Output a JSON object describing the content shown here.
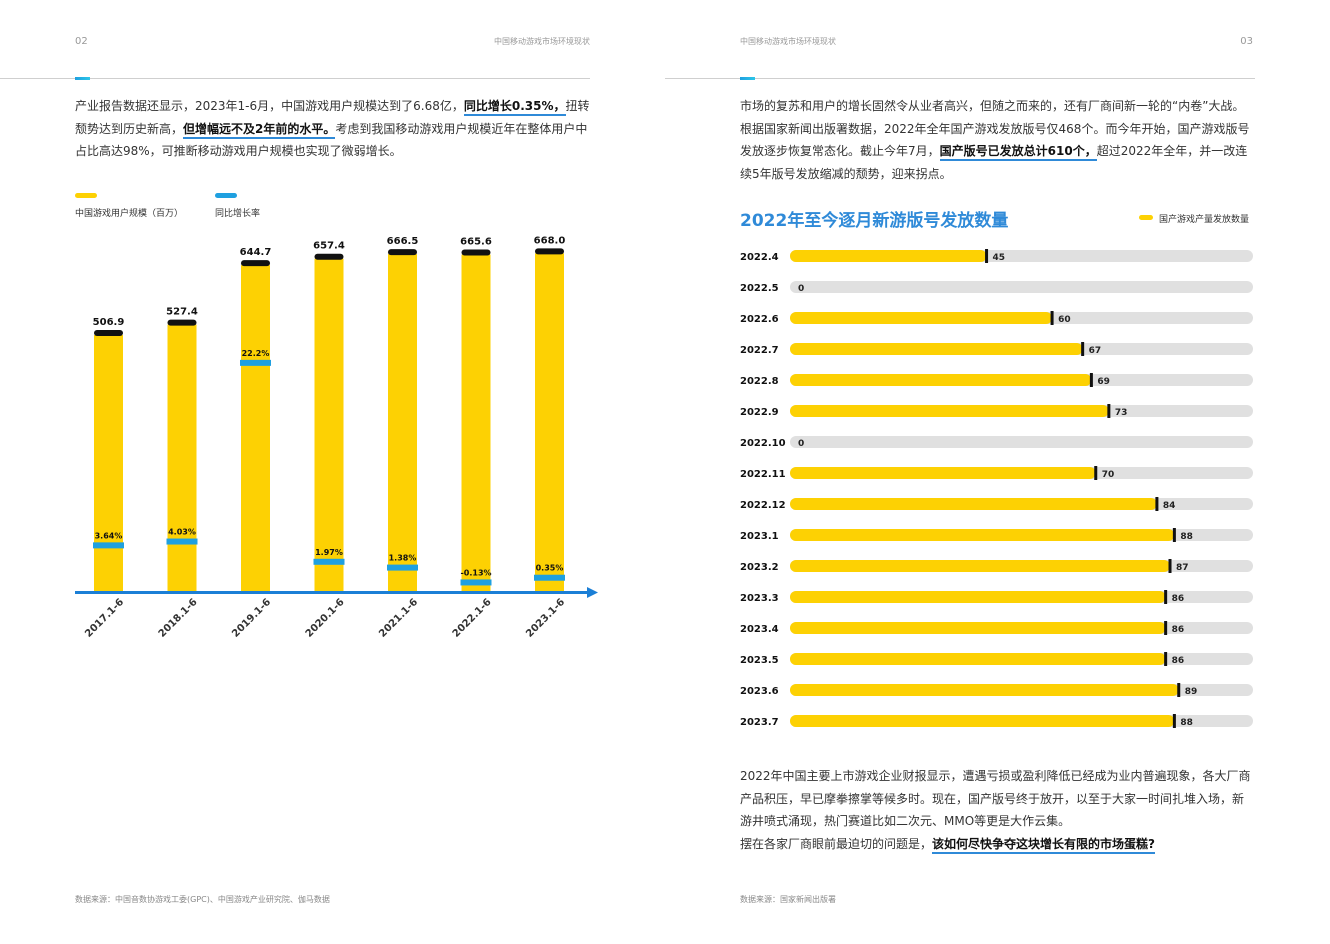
{
  "colors": {
    "yellow": "#FDD103",
    "blue": "#1FA0E0",
    "axis_blue": "#1B7FD6",
    "title_blue": "#2F8AD8",
    "track": "#E0E0E0",
    "black": "#111111"
  },
  "left_page": {
    "page_number": "02",
    "running_head": "中国移动游戏市场环境现状",
    "paragraph": {
      "p1": "产业报告数据还显示，2023年1-6月，中国游戏用户规模达到了6.68亿，",
      "h1": "同比增长0.35%，",
      "p2": "扭转颓势达到历史新高，",
      "h2": "但增幅远不及2年前的水平。",
      "p3": "考虑到我国移动游戏用户规模近年在整体用户中占比高达98%，可推断移动游戏用户规模也实现了微弱增长。"
    },
    "source": "数据来源：中国音数协游戏工委(GPC)、中国游戏产业研究院、伽马数据"
  },
  "right_page": {
    "page_number": "03",
    "running_head": "中国移动游戏市场环境现状",
    "paragraph_top": {
      "p1": "市场的复苏和用户的增长固然令从业者高兴，但随之而来的，还有厂商间新一轮的“内卷”大战。根据国家新闻出版署数据，2022年全年国产游戏发放版号仅468个。而今年开始，国产游戏版号发放逐步恢复常态化。截止今年7月，",
      "h1": "国产版号已发放总计610个，",
      "p2": "超过2022年全年，并一改连续5年版号发放缩减的颓势，迎来拐点。"
    },
    "paragraph_bottom": {
      "p1": "2022年中国主要上市游戏企业财报显示，遭遇亏损或盈利降低已经成为业内普遍现象，各大厂商产品积压，早已摩拳擦掌等候多时。现在，国产版号终于放开，以至于大家一时间扎堆入场，新游井喷式涌现，热门赛道比如二次元、MMO等更是大作云集。",
      "p2": "摆在各家厂商眼前最迫切的问题是，",
      "h1": "该如何尽快争夺这块增长有限的市场蛋糕?"
    },
    "source": "数据来源：国家新闻出版署"
  },
  "chart_data": [
    {
      "type": "bar",
      "title": "",
      "categories": [
        "2017.1-6",
        "2018.1-6",
        "2019.1-6",
        "2020.1-6",
        "2021.1-6",
        "2022.1-6",
        "2023.1-6"
      ],
      "series": [
        {
          "name": "中国游戏用户规模（百万）",
          "values": [
            506.9,
            527.4,
            644.7,
            657.4,
            666.5,
            665.6,
            668.0
          ],
          "value_labels": [
            "506.9",
            "527.4",
            "644.7",
            "657.4",
            "666.5",
            "665.6",
            "668.0"
          ]
        },
        {
          "name": "同比增长率",
          "values": [
            3.64,
            4.03,
            22.2,
            1.97,
            1.38,
            -0.13,
            0.35
          ],
          "value_labels": [
            "3.64%",
            "4.03%",
            "22.2%",
            "1.97%",
            "1.38%",
            "-0.13%",
            "0.35%"
          ]
        }
      ],
      "legend_position": "top-left",
      "grid": false
    },
    {
      "type": "bar",
      "orientation": "horizontal",
      "title": "2022年至今逐月新游版号发放数量",
      "categories": [
        "2022.4",
        "2022.5",
        "2022.6",
        "2022.7",
        "2022.8",
        "2022.9",
        "2022.10",
        "2022.11",
        "2022.12",
        "2023.1",
        "2023.2",
        "2023.3",
        "2023.4",
        "2023.5",
        "2023.6",
        "2023.7"
      ],
      "series": [
        {
          "name": "国产游戏产量发放数量",
          "values": [
            45,
            0,
            60,
            67,
            69,
            73,
            0,
            70,
            84,
            88,
            87,
            86,
            86,
            86,
            89,
            88
          ]
        }
      ],
      "xlim": [
        0,
        106
      ],
      "legend_position": "top-right",
      "grid": false
    }
  ]
}
